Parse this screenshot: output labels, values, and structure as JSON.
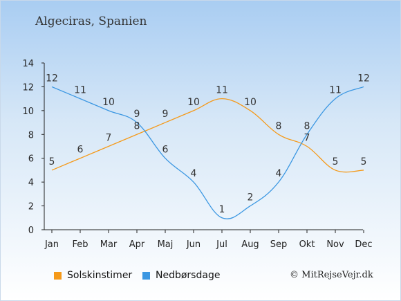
{
  "chart_data": {
    "type": "line",
    "title": "Algeciras, Spanien",
    "categories": [
      "Jan",
      "Feb",
      "Mar",
      "Apr",
      "Maj",
      "Jun",
      "Jul",
      "Aug",
      "Sep",
      "Okt",
      "Nov",
      "Dec"
    ],
    "ylim": [
      0,
      14
    ],
    "yticks": [
      0,
      2,
      4,
      6,
      8,
      10,
      12,
      14
    ],
    "grid": false,
    "series": [
      {
        "name": "Solskinstimer",
        "color": "#f59a1a",
        "values": [
          5,
          6,
          7,
          8,
          9,
          10,
          11,
          10,
          8,
          7,
          5,
          5
        ]
      },
      {
        "name": "Nedbørsdage",
        "color": "#3b97e2",
        "values": [
          12,
          11,
          10,
          9,
          6,
          4,
          1,
          2,
          4,
          8,
          11,
          12
        ]
      }
    ]
  },
  "credit": "© MitRejseVejr.dk"
}
